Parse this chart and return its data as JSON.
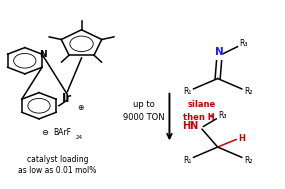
{
  "bg_color": "#ffffff",
  "black": "#000000",
  "blue": "#1a1aff",
  "red": "#cc0000",
  "fig_width": 2.85,
  "fig_height": 1.89,
  "dpi": 100,
  "catalyst_text1": "catalyst loading",
  "catalyst_text2": "as low as 0.01 mol%",
  "condition_text1": "up to",
  "condition_text2": "9000 TON",
  "barf": "BArF",
  "barf_sub": "24"
}
